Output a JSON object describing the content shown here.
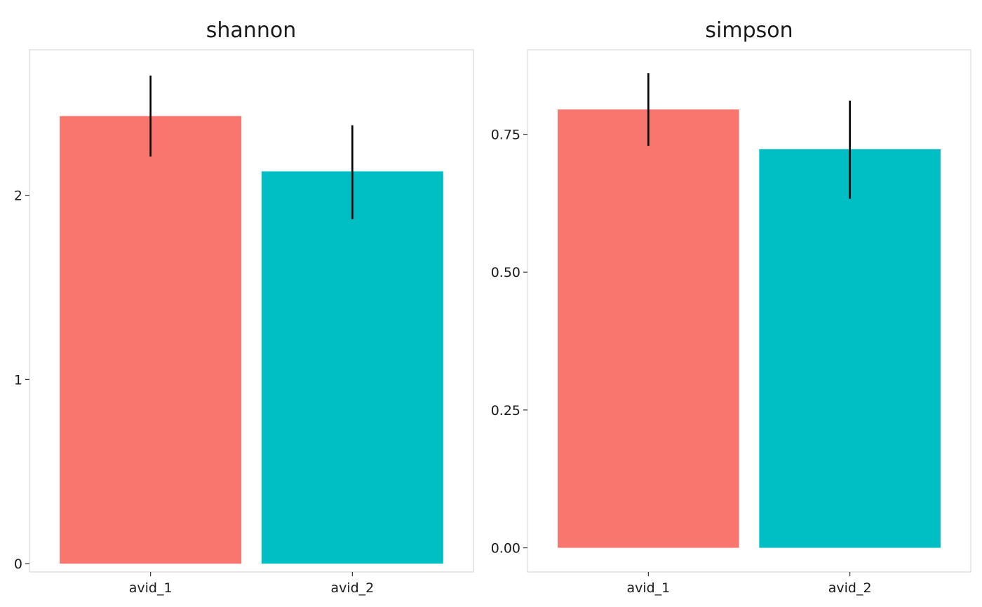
{
  "chart_data": [
    {
      "type": "bar",
      "title": "shannon",
      "categories": [
        "avid_1",
        "avid_2"
      ],
      "values": [
        2.43,
        2.13
      ],
      "error": [
        [
          2.21,
          2.65
        ],
        [
          1.87,
          2.38
        ]
      ],
      "colors": [
        "#F8766D",
        "#00BFC4"
      ],
      "yticks": [
        0,
        1,
        2
      ],
      "ytick_labels": [
        "0",
        "1",
        "2"
      ],
      "ylim": [
        -0.045,
        2.79
      ],
      "grid": false,
      "legend": "none"
    },
    {
      "type": "bar",
      "title": "simpson",
      "categories": [
        "avid_1",
        "avid_2"
      ],
      "values": [
        0.795,
        0.723
      ],
      "error": [
        [
          0.729,
          0.861
        ],
        [
          0.633,
          0.811
        ]
      ],
      "colors": [
        "#F8766D",
        "#00BFC4"
      ],
      "yticks": [
        0,
        0.25,
        0.5,
        0.75
      ],
      "ytick_labels": [
        "0.00",
        "0.25",
        "0.50",
        "0.75"
      ],
      "ylim": [
        -0.0438,
        0.9033
      ],
      "grid": false,
      "legend": "none"
    }
  ]
}
